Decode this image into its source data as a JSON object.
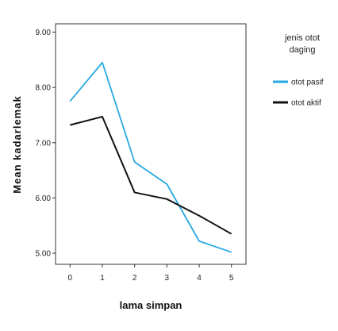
{
  "chart_data": {
    "type": "line",
    "title": "",
    "xlabel": "lama simpan",
    "ylabel": "Mean kadarlemak",
    "x": [
      0,
      1,
      2,
      3,
      4,
      5
    ],
    "x_tick_labels": [
      "0",
      "1",
      "2",
      "3",
      "4",
      "5"
    ],
    "y_tick_labels": [
      "5.00",
      "6.00",
      "7.00",
      "8.00",
      "9.00"
    ],
    "y_ticks": [
      5,
      6,
      7,
      8,
      9
    ],
    "ylim": [
      4.8,
      9.15
    ],
    "xlim": [
      -0.45,
      5.45
    ],
    "grid": false,
    "legend": {
      "title": "jenis otot daging",
      "title_lines": [
        "jenis otot",
        "daging"
      ],
      "placement": "right"
    },
    "series": [
      {
        "name": "otot pasif",
        "color": "#29a8e0",
        "values": [
          7.75,
          8.45,
          6.65,
          6.25,
          5.22,
          5.02
        ]
      },
      {
        "name": "otot aktif",
        "color": "#111111",
        "values": [
          7.32,
          7.47,
          6.1,
          5.98,
          5.68,
          5.35
        ]
      }
    ]
  }
}
